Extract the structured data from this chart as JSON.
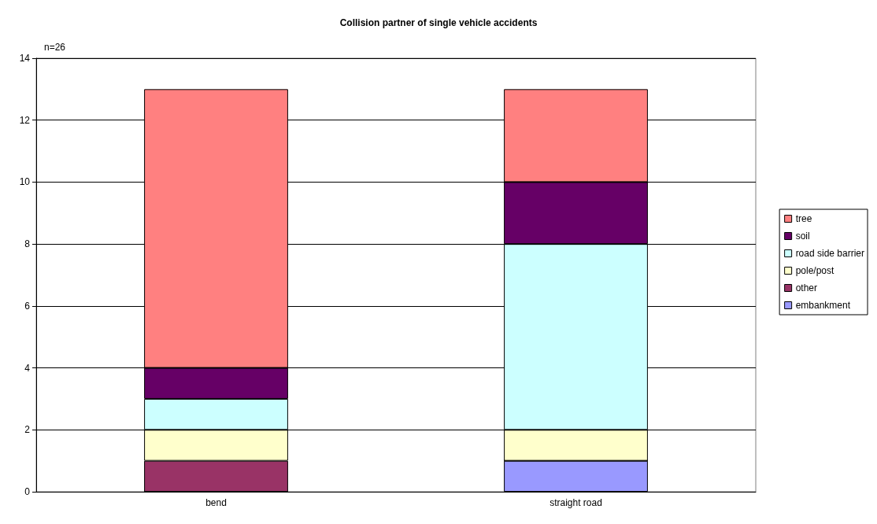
{
  "chart_data": {
    "type": "bar",
    "title": "Collision partner of single vehicle accidents",
    "annotations": [
      "n=26"
    ],
    "categories": [
      "bend",
      "straight road"
    ],
    "stacked": true,
    "series": [
      {
        "name": "embankment",
        "color": "#9999ff",
        "values": [
          0,
          1
        ]
      },
      {
        "name": "other",
        "color": "#993366",
        "values": [
          1,
          0
        ]
      },
      {
        "name": "pole/post",
        "color": "#ffffcc",
        "values": [
          1,
          1
        ]
      },
      {
        "name": "road side barrier",
        "color": "#ccffff",
        "values": [
          1,
          6
        ]
      },
      {
        "name": "soil",
        "color": "#660066",
        "values": [
          1,
          2
        ]
      },
      {
        "name": "tree",
        "color": "#ff8080",
        "values": [
          9,
          3
        ]
      }
    ],
    "ylim": [
      0,
      14
    ],
    "yticks": [
      0,
      2,
      4,
      6,
      8,
      10,
      12,
      14
    ],
    "grid": "y",
    "legend": "right"
  }
}
